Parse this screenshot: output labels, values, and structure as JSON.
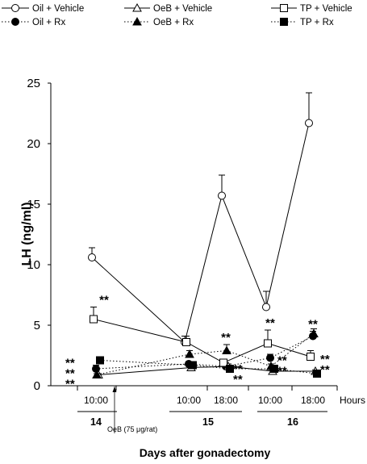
{
  "chart_data": {
    "type": "line",
    "xlabel": "Days after gonadectomy",
    "ylabel": "LH (ng/ml)",
    "x_unit_label": "Hours",
    "ylim": [
      0,
      25
    ],
    "yticks": [
      "0",
      "5",
      "10",
      "15",
      "20",
      "25"
    ],
    "categories": [
      "10:00",
      "10:00",
      "18:00",
      "10:00",
      "18:00"
    ],
    "days": [
      {
        "label": "14",
        "categories": [
          0
        ]
      },
      {
        "label": "15",
        "categories": [
          1,
          2
        ]
      },
      {
        "label": "16",
        "categories": [
          3,
          4
        ]
      }
    ],
    "annotation": {
      "text": "OeB (75 μg/rat)",
      "after_category": 0
    },
    "significance_marker": "**",
    "series": [
      {
        "name": "Oil + Vehicle",
        "style": "solid",
        "marker": "circle",
        "filled": false,
        "values": [
          10.6,
          3.6,
          15.7,
          6.5,
          21.7
        ],
        "errors": [
          0.8,
          0.5,
          1.7,
          1.3,
          2.5
        ],
        "sig": [
          false,
          false,
          false,
          false,
          false
        ]
      },
      {
        "name": "Oil + Rx",
        "style": "dotted",
        "marker": "circle",
        "filled": true,
        "values": [
          1.4,
          1.8,
          1.6,
          2.3,
          4.1
        ],
        "errors": [
          0.3,
          0.2,
          0.2,
          0.3,
          0.4
        ],
        "sig": [
          true,
          false,
          true,
          true,
          true
        ]
      },
      {
        "name": "OeB + Vehicle",
        "style": "solid",
        "marker": "triangle",
        "filled": false,
        "values": [
          0.9,
          1.5,
          1.6,
          1.2,
          1.2
        ],
        "errors": [
          0.1,
          0.1,
          0.2,
          0.1,
          0.1
        ],
        "sig": [
          true,
          false,
          true,
          true,
          true
        ]
      },
      {
        "name": "OeB + Rx",
        "style": "dotted",
        "marker": "triangle",
        "filled": true,
        "values": [
          0.9,
          2.6,
          2.9,
          1.6,
          4.3
        ],
        "errors": [
          0.1,
          0.3,
          0.5,
          0.2,
          0.4
        ],
        "sig": [
          false,
          false,
          true,
          false,
          false
        ]
      },
      {
        "name": "TP + Vehicle",
        "style": "solid",
        "marker": "square",
        "filled": false,
        "values": [
          5.5,
          3.6,
          1.9,
          3.5,
          2.4
        ],
        "errors": [
          1.0,
          0.5,
          0.3,
          1.1,
          0.5
        ],
        "sig": [
          true,
          false,
          false,
          true,
          true
        ]
      },
      {
        "name": "TP + Rx",
        "style": "dotted",
        "marker": "square",
        "filled": true,
        "values": [
          2.1,
          1.7,
          1.4,
          1.4,
          1.0
        ],
        "errors": [
          0.2,
          0.2,
          0.2,
          0.2,
          0.1
        ],
        "sig": [
          true,
          false,
          false,
          false,
          false
        ]
      }
    ]
  }
}
